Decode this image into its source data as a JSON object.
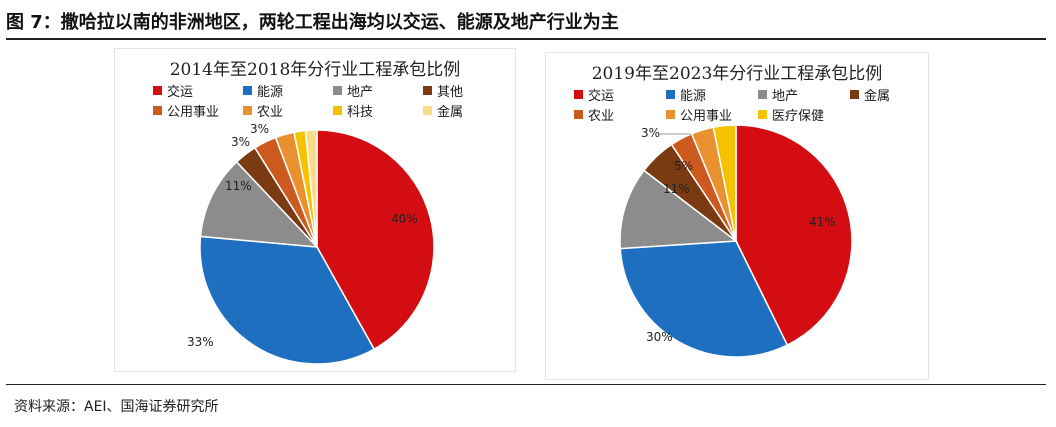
{
  "figure": {
    "title": "图 7：撒哈拉以南的非洲地区，两轮工程出海均以交运、能源及地产行业为主",
    "source": "资料来源：AEI、国海证券研究所"
  },
  "colors": {
    "交运": "#d40d12",
    "能源": "#1f6fc1",
    "地产": "#8c8c8c",
    "其他": "#7a3a12",
    "金属": "#7a3a12",
    "公用事业": "#cc5a1e",
    "农业": "#e8912e",
    "科技": "#f5c200",
    "金属_2014": "#f9dc8a",
    "医疗保健": "#f5c200"
  },
  "chart_data": [
    {
      "type": "pie",
      "title": "2014年至2018年分行业工程承包比例",
      "legend": [
        "交运",
        "能源",
        "地产",
        "其他",
        "公用事业",
        "农业",
        "科技",
        "金属"
      ],
      "legend_colors": [
        "#d40d12",
        "#1f6fc1",
        "#8c8c8c",
        "#7a3a12",
        "#cc5a1e",
        "#e8912e",
        "#f5c200",
        "#f9dc8a"
      ],
      "slices": [
        {
          "name": "交运",
          "value": 40,
          "label": "40%"
        },
        {
          "name": "能源",
          "value": 33,
          "label": "33%"
        },
        {
          "name": "地产",
          "value": 11,
          "label": "11%"
        },
        {
          "name": "其他",
          "value": 3,
          "label": "3%"
        },
        {
          "name": "公用事业",
          "value": 3,
          "label": "3%"
        },
        {
          "name": "农业",
          "value": 2.5,
          "label": ""
        },
        {
          "name": "科技",
          "value": 1.5,
          "label": ""
        },
        {
          "name": "金属",
          "value": 1.5,
          "label": ""
        }
      ]
    },
    {
      "type": "pie",
      "title": "2019年至2023年分行业工程承包比例",
      "legend": [
        "交运",
        "能源",
        "地产",
        "金属",
        "农业",
        "公用事业",
        "医疗保健"
      ],
      "legend_colors": [
        "#d40d12",
        "#1f6fc1",
        "#8c8c8c",
        "#7a3a12",
        "#cc5a1e",
        "#e8912e",
        "#f5c200"
      ],
      "slices": [
        {
          "name": "交运",
          "value": 41,
          "label": "41%"
        },
        {
          "name": "能源",
          "value": 30,
          "label": "30%"
        },
        {
          "name": "地产",
          "value": 11,
          "label": "11%"
        },
        {
          "name": "金属",
          "value": 5,
          "label": "5%"
        },
        {
          "name": "农业",
          "value": 3,
          "label": "3%"
        },
        {
          "name": "公用事业",
          "value": 3,
          "label": ""
        },
        {
          "name": "医疗保健",
          "value": 3,
          "label": ""
        }
      ]
    }
  ]
}
